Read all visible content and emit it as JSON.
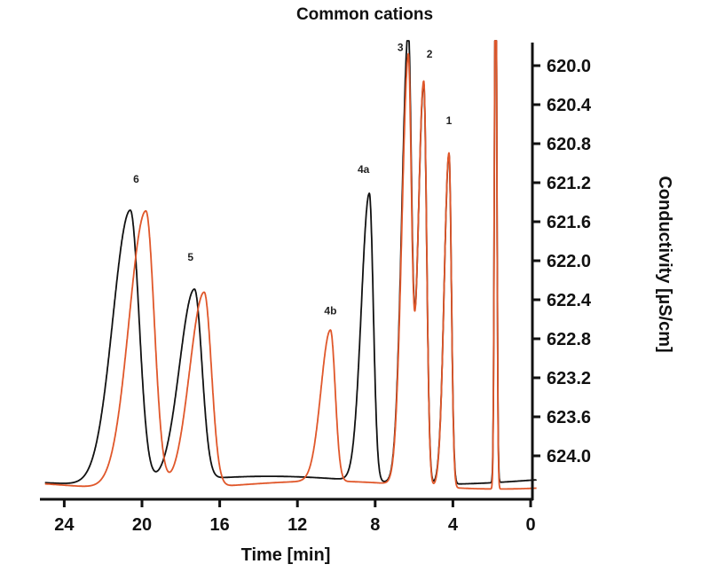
{
  "chart_data": {
    "type": "line",
    "title": "Common cations",
    "xlabel": "Time [min]",
    "ylabel": "Conductivity [µS/cm]",
    "x_reversed": true,
    "y_reversed": true,
    "xlim": [
      0,
      25
    ],
    "xticks": [
      0,
      4,
      8,
      12,
      16,
      20,
      24
    ],
    "yticks": [
      620.0,
      620.4,
      620.8,
      621.2,
      621.6,
      622.0,
      622.4,
      622.8,
      623.2,
      623.6,
      624.0
    ],
    "ytick_labels": [
      "620.0",
      "620.4",
      "620.8",
      "621.2",
      "621.6",
      "622.0",
      "622.4",
      "622.8",
      "623.2",
      "623.6",
      "624.0"
    ],
    "ylim": [
      619.55,
      624.35
    ],
    "grid": false,
    "series": [
      {
        "color": "#111111",
        "baseline": 624.25,
        "peaks": [
          {
            "label": "1",
            "x": 4.2,
            "y": 620.87
          },
          {
            "label": "2",
            "x": 5.5,
            "y": 620.15
          },
          {
            "label": "3",
            "x": 6.3,
            "y": 619.7
          },
          {
            "label": "4a",
            "x": 8.3,
            "y": 621.3
          },
          {
            "label": "5",
            "x": 17.3,
            "y": 622.3
          },
          {
            "label": "6",
            "x": 20.6,
            "y": 621.45
          }
        ]
      },
      {
        "color": "#e0572a",
        "baseline": 624.3,
        "peaks": [
          {
            "label": "1",
            "x": 4.2,
            "y": 620.87
          },
          {
            "label": "2",
            "x": 5.5,
            "y": 620.15
          },
          {
            "label": "3",
            "x": 6.3,
            "y": 620.0
          },
          {
            "label": "4b",
            "x": 10.3,
            "y": 622.75
          },
          {
            "label": "5",
            "x": 16.8,
            "y": 622.3
          },
          {
            "label": "6",
            "x": 19.8,
            "y": 621.45
          }
        ]
      }
    ],
    "peak_labels": [
      {
        "text": "1",
        "x": 4.2,
        "y": 620.6
      },
      {
        "text": "2",
        "x": 5.2,
        "y": 619.92
      },
      {
        "text": "3",
        "x": 6.7,
        "y": 619.85
      },
      {
        "text": "4a",
        "x": 8.6,
        "y": 621.1
      },
      {
        "text": "4b",
        "x": 10.3,
        "y": 622.55
      },
      {
        "text": "5",
        "x": 17.5,
        "y": 622.0
      },
      {
        "text": "6",
        "x": 20.3,
        "y": 621.2
      }
    ]
  }
}
